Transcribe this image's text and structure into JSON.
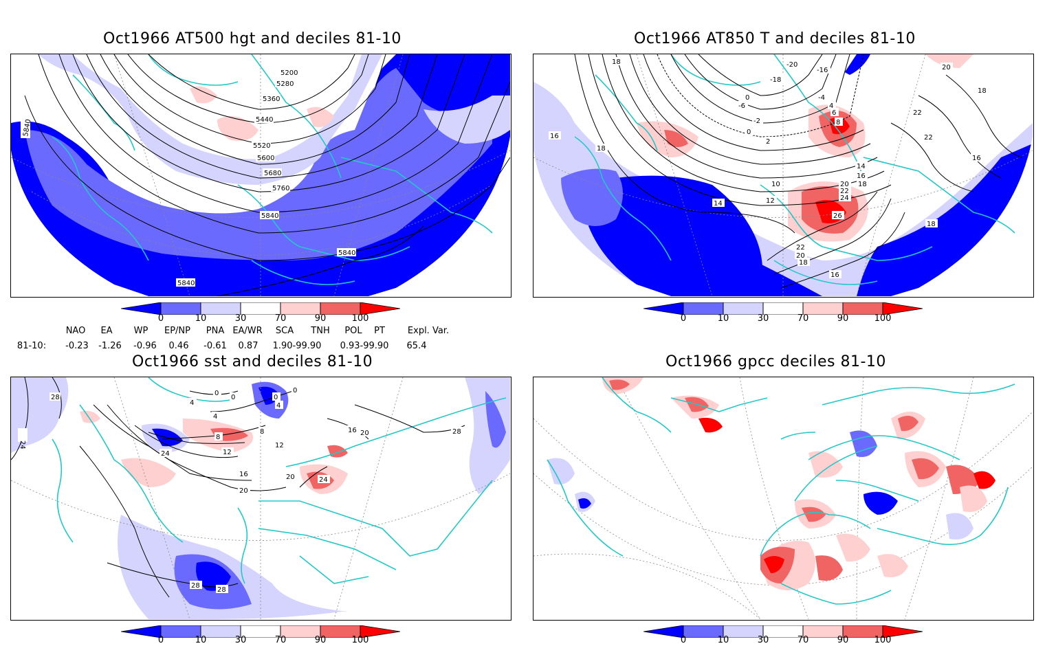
{
  "panels": {
    "hgt": {
      "title": "Oct1966 AT500 hgt and deciles 81-10",
      "contour_labels": [
        "5200",
        "5280",
        "5360",
        "5440",
        "5520",
        "5600",
        "5680",
        "5760",
        "5840",
        "5840",
        "5840",
        "5840"
      ]
    },
    "t850": {
      "title": "Oct1966 AT850 T and deciles 81-10",
      "contour_labels": [
        "-20",
        "-16",
        "-18",
        "-6",
        "0",
        "-4",
        "-2",
        "0",
        "2",
        "4",
        "6",
        "8",
        "16",
        "18",
        "18",
        "14",
        "10",
        "12",
        "14",
        "16",
        "18",
        "20",
        "22",
        "24",
        "26",
        "22",
        "20",
        "18",
        "16",
        "20",
        "18",
        "22",
        "22",
        "16",
        "18"
      ]
    },
    "sst": {
      "title": "Oct1966 sst and deciles 81-10",
      "contour_labels": [
        "28",
        "24",
        "4",
        "0",
        "0",
        "0",
        "0",
        "4",
        "4",
        "8",
        "8",
        "12",
        "16",
        "20",
        "24",
        "20",
        "24",
        "12",
        "16",
        "20",
        "28",
        "28",
        "28"
      ]
    },
    "gpcc": {
      "title": "Oct1966 gpcc deciles 81-10"
    }
  },
  "colorbar": {
    "ticks": [
      "0",
      "10",
      "30",
      "70",
      "90",
      "100"
    ],
    "colors": [
      "#0000ff",
      "#6a6aff",
      "#d4d4ff",
      "#ffffff",
      "#ffd0d0",
      "#f06464",
      "#ff0000"
    ]
  },
  "indices": {
    "headers": [
      "NAO",
      "EA",
      "WP",
      "EP/NP",
      "PNA",
      "EA/WR",
      "SCA",
      "TNH",
      "POL",
      "PT",
      "Expl. Var."
    ],
    "row_label": "81-10:",
    "values": [
      "-0.23",
      "-1.26",
      "-0.96",
      "0.46",
      "-0.61",
      "0.87",
      "1.90-99.90",
      "",
      "0.93-99.90",
      "",
      "65.4"
    ]
  }
}
